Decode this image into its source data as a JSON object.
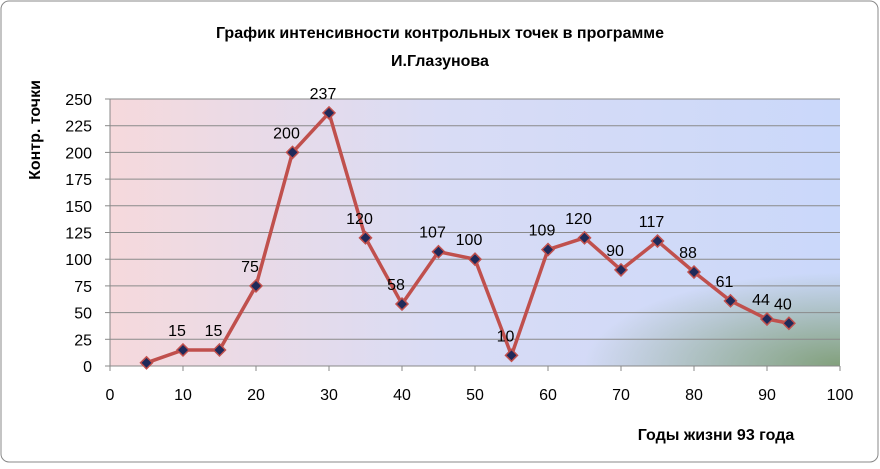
{
  "chart_data": {
    "type": "line",
    "title": "График интенсивности контрольных точек   в программе",
    "subtitle": "И.Глазунова",
    "y_label": "Контр. точки",
    "x_label": "Годы жизни 93 года",
    "x": [
      5,
      10,
      15,
      20,
      25,
      30,
      35,
      40,
      45,
      50,
      55,
      60,
      65,
      70,
      75,
      80,
      85,
      90,
      93
    ],
    "series": [
      {
        "color": "#c0504d",
        "values": [
          3,
          15,
          15,
          75,
          200,
          237,
          120,
          58,
          107,
          100,
          10,
          109,
          120,
          90,
          117,
          88,
          61,
          44,
          40
        ],
        "value_labels": [
          null,
          "15",
          "15",
          "75",
          "200",
          "237",
          "120",
          "58",
          "107",
          "100",
          "10",
          "109",
          "120",
          "90",
          "117",
          "88",
          "61",
          "44",
          "40"
        ]
      }
    ],
    "xlim": [
      0,
      100
    ],
    "xticks": [
      0,
      10,
      20,
      30,
      40,
      50,
      60,
      70,
      80,
      90,
      100
    ],
    "ylim": [
      0,
      250
    ],
    "yticks": [
      0,
      25,
      50,
      75,
      100,
      125,
      150,
      175,
      200,
      225,
      250
    ],
    "grid": true
  }
}
